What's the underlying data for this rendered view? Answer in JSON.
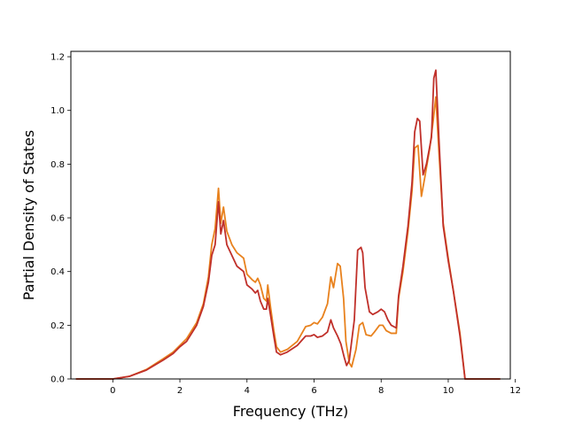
{
  "chart_data": {
    "type": "line",
    "title": "",
    "xlabel": "Frequency (THz)",
    "ylabel": "Partial Density of States",
    "xlim": [
      -1.25,
      11.85
    ],
    "ylim": [
      0.0,
      1.22
    ],
    "xticks": [
      0,
      2,
      4,
      6,
      8,
      10,
      12
    ],
    "yticks": [
      0.0,
      0.2,
      0.4,
      0.6,
      0.8,
      1.0,
      1.2
    ],
    "xtick_labels": [
      "0",
      "2",
      "4",
      "6",
      "8",
      "10",
      "12"
    ],
    "ytick_labels": [
      "0.0",
      "0.2",
      "0.4",
      "0.6",
      "0.8",
      "1.0",
      "1.2"
    ],
    "grid": false,
    "legend": "none",
    "series": [
      {
        "color": "#e8821e",
        "points": [
          [
            -1.1,
            0
          ],
          [
            0,
            0
          ],
          [
            0.5,
            0.01
          ],
          [
            1,
            0.035
          ],
          [
            1.5,
            0.075
          ],
          [
            1.8,
            0.1
          ],
          [
            2.0,
            0.125
          ],
          [
            2.2,
            0.15
          ],
          [
            2.5,
            0.21
          ],
          [
            2.7,
            0.28
          ],
          [
            2.85,
            0.38
          ],
          [
            2.95,
            0.5
          ],
          [
            3.05,
            0.56
          ],
          [
            3.15,
            0.71
          ],
          [
            3.22,
            0.58
          ],
          [
            3.3,
            0.64
          ],
          [
            3.4,
            0.55
          ],
          [
            3.55,
            0.5
          ],
          [
            3.7,
            0.47
          ],
          [
            3.9,
            0.45
          ],
          [
            4.0,
            0.39
          ],
          [
            4.15,
            0.37
          ],
          [
            4.25,
            0.36
          ],
          [
            4.32,
            0.375
          ],
          [
            4.4,
            0.35
          ],
          [
            4.5,
            0.3
          ],
          [
            4.58,
            0.29
          ],
          [
            4.62,
            0.35
          ],
          [
            4.7,
            0.27
          ],
          [
            4.8,
            0.18
          ],
          [
            4.88,
            0.12
          ],
          [
            5.0,
            0.1
          ],
          [
            5.2,
            0.11
          ],
          [
            5.5,
            0.14
          ],
          [
            5.75,
            0.195
          ],
          [
            5.9,
            0.2
          ],
          [
            6.0,
            0.21
          ],
          [
            6.1,
            0.205
          ],
          [
            6.25,
            0.23
          ],
          [
            6.4,
            0.28
          ],
          [
            6.5,
            0.38
          ],
          [
            6.58,
            0.34
          ],
          [
            6.7,
            0.43
          ],
          [
            6.78,
            0.42
          ],
          [
            6.88,
            0.3
          ],
          [
            6.95,
            0.14
          ],
          [
            7.05,
            0.06
          ],
          [
            7.12,
            0.045
          ],
          [
            7.25,
            0.11
          ],
          [
            7.35,
            0.2
          ],
          [
            7.45,
            0.21
          ],
          [
            7.55,
            0.165
          ],
          [
            7.7,
            0.16
          ],
          [
            7.8,
            0.175
          ],
          [
            7.95,
            0.2
          ],
          [
            8.05,
            0.2
          ],
          [
            8.15,
            0.18
          ],
          [
            8.3,
            0.17
          ],
          [
            8.45,
            0.17
          ],
          [
            8.52,
            0.3
          ],
          [
            8.65,
            0.4
          ],
          [
            8.8,
            0.55
          ],
          [
            8.92,
            0.7
          ],
          [
            9.0,
            0.86
          ],
          [
            9.1,
            0.87
          ],
          [
            9.2,
            0.68
          ],
          [
            9.3,
            0.75
          ],
          [
            9.45,
            0.86
          ],
          [
            9.55,
            0.96
          ],
          [
            9.63,
            1.05
          ],
          [
            9.72,
            0.85
          ],
          [
            9.85,
            0.58
          ],
          [
            10.0,
            0.45
          ],
          [
            10.15,
            0.33
          ],
          [
            10.35,
            0.17
          ],
          [
            10.5,
            0.0
          ],
          [
            11.55,
            0.0
          ]
        ]
      },
      {
        "color": "#c0302a",
        "points": [
          [
            -1.1,
            0
          ],
          [
            0,
            0
          ],
          [
            0.5,
            0.01
          ],
          [
            1,
            0.033
          ],
          [
            1.5,
            0.07
          ],
          [
            1.8,
            0.095
          ],
          [
            2.0,
            0.12
          ],
          [
            2.2,
            0.14
          ],
          [
            2.5,
            0.2
          ],
          [
            2.7,
            0.27
          ],
          [
            2.85,
            0.36
          ],
          [
            2.95,
            0.46
          ],
          [
            3.05,
            0.5
          ],
          [
            3.15,
            0.66
          ],
          [
            3.22,
            0.54
          ],
          [
            3.3,
            0.59
          ],
          [
            3.4,
            0.5
          ],
          [
            3.55,
            0.46
          ],
          [
            3.7,
            0.42
          ],
          [
            3.9,
            0.4
          ],
          [
            4.0,
            0.35
          ],
          [
            4.15,
            0.335
          ],
          [
            4.25,
            0.32
          ],
          [
            4.32,
            0.33
          ],
          [
            4.4,
            0.29
          ],
          [
            4.5,
            0.26
          ],
          [
            4.58,
            0.26
          ],
          [
            4.62,
            0.3
          ],
          [
            4.7,
            0.24
          ],
          [
            4.8,
            0.16
          ],
          [
            4.88,
            0.1
          ],
          [
            5.0,
            0.09
          ],
          [
            5.2,
            0.1
          ],
          [
            5.5,
            0.125
          ],
          [
            5.75,
            0.16
          ],
          [
            5.9,
            0.16
          ],
          [
            6.0,
            0.165
          ],
          [
            6.1,
            0.155
          ],
          [
            6.25,
            0.16
          ],
          [
            6.4,
            0.175
          ],
          [
            6.5,
            0.22
          ],
          [
            6.58,
            0.19
          ],
          [
            6.7,
            0.16
          ],
          [
            6.8,
            0.13
          ],
          [
            6.9,
            0.08
          ],
          [
            6.97,
            0.05
          ],
          [
            7.05,
            0.07
          ],
          [
            7.2,
            0.22
          ],
          [
            7.3,
            0.48
          ],
          [
            7.4,
            0.49
          ],
          [
            7.45,
            0.47
          ],
          [
            7.52,
            0.34
          ],
          [
            7.65,
            0.25
          ],
          [
            7.75,
            0.24
          ],
          [
            7.9,
            0.25
          ],
          [
            8.0,
            0.26
          ],
          [
            8.1,
            0.25
          ],
          [
            8.2,
            0.22
          ],
          [
            8.3,
            0.2
          ],
          [
            8.45,
            0.19
          ],
          [
            8.52,
            0.31
          ],
          [
            8.65,
            0.42
          ],
          [
            8.8,
            0.57
          ],
          [
            8.92,
            0.73
          ],
          [
            9.0,
            0.92
          ],
          [
            9.08,
            0.97
          ],
          [
            9.15,
            0.96
          ],
          [
            9.25,
            0.76
          ],
          [
            9.35,
            0.8
          ],
          [
            9.5,
            0.9
          ],
          [
            9.57,
            1.12
          ],
          [
            9.63,
            1.15
          ],
          [
            9.72,
            0.9
          ],
          [
            9.85,
            0.57
          ],
          [
            10.0,
            0.44
          ],
          [
            10.15,
            0.33
          ],
          [
            10.35,
            0.16
          ],
          [
            10.5,
            0.0
          ],
          [
            11.55,
            0.0
          ]
        ]
      }
    ]
  }
}
